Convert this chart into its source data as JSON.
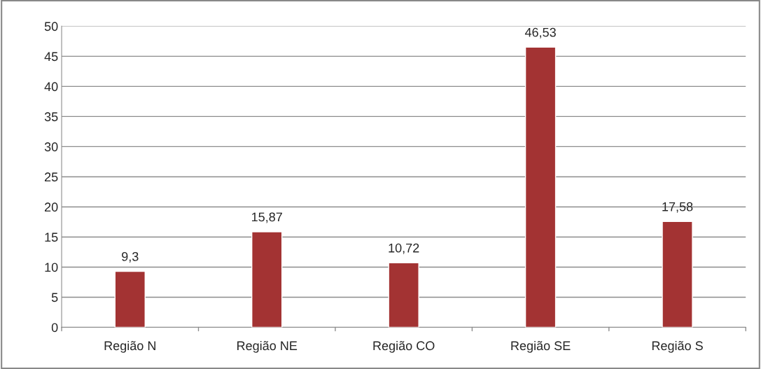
{
  "chart_data": {
    "type": "bar",
    "categories": [
      "Região N",
      "Região NE",
      "Região CO",
      "Região SE",
      "Região S"
    ],
    "values": [
      9.3,
      15.87,
      10.72,
      46.53,
      17.58
    ],
    "value_labels": [
      "9,3",
      "15,87",
      "10,72",
      "46,53",
      "17,58"
    ],
    "color": "#a33333",
    "ylim": [
      0,
      50
    ],
    "yticks": [
      0,
      5,
      10,
      15,
      20,
      25,
      30,
      35,
      40,
      45,
      50
    ],
    "grid": "y"
  }
}
